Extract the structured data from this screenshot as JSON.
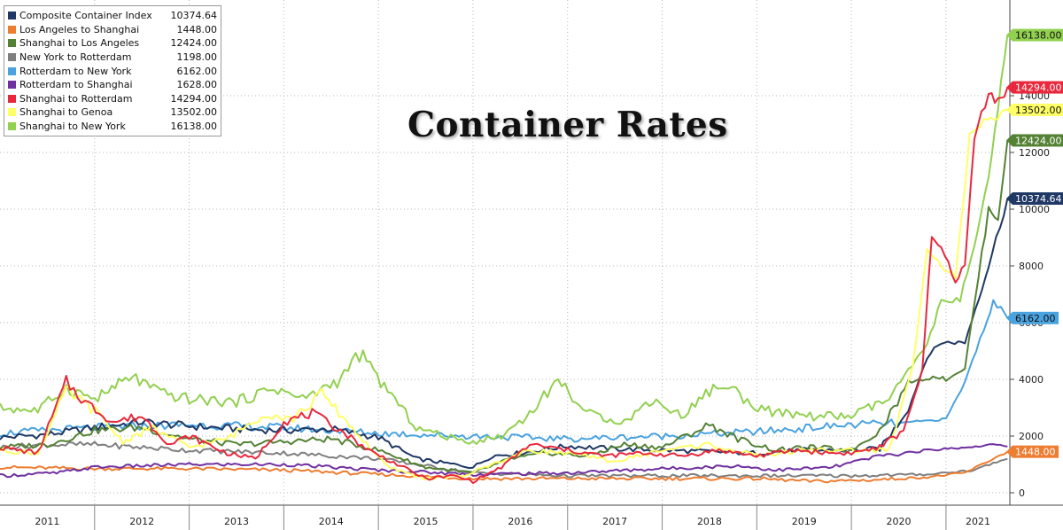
{
  "chart_data": {
    "type": "line",
    "title": "Container Rates",
    "x_range": [
      "2011-01-01",
      "2021-08-01"
    ],
    "ylim": [
      -500,
      16800
    ],
    "y_ticks": [
      0,
      2000,
      4000,
      6000,
      8000,
      10000,
      12000,
      14000
    ],
    "x_tick_labels": [
      "2011",
      "2012",
      "2013",
      "2014",
      "2015",
      "2016",
      "2017",
      "2018",
      "2019",
      "2020",
      "2021"
    ],
    "grid": true,
    "legend_position": "top-left",
    "series": [
      {
        "name": "Composite Container Index",
        "last": "10374.64",
        "color": "#1f3864",
        "values": [
          [
            2011.0,
            1950
          ],
          [
            2011.5,
            2050
          ],
          [
            2012.0,
            2300
          ],
          [
            2012.5,
            2500
          ],
          [
            2013.0,
            2350
          ],
          [
            2013.5,
            2250
          ],
          [
            2014.0,
            2200
          ],
          [
            2014.5,
            2250
          ],
          [
            2015.0,
            1950
          ],
          [
            2015.4,
            1200
          ],
          [
            2015.8,
            1000
          ],
          [
            2016.0,
            900
          ],
          [
            2016.2,
            1300
          ],
          [
            2016.5,
            1400
          ],
          [
            2017.0,
            1650
          ],
          [
            2017.5,
            1550
          ],
          [
            2018.0,
            1500
          ],
          [
            2018.5,
            1450
          ],
          [
            2019.0,
            1400
          ],
          [
            2019.5,
            1500
          ],
          [
            2020.0,
            1500
          ],
          [
            2020.3,
            1550
          ],
          [
            2020.6,
            2900
          ],
          [
            2020.8,
            4800
          ],
          [
            2020.95,
            5300
          ],
          [
            2021.2,
            5300
          ],
          [
            2021.45,
            8000
          ],
          [
            2021.65,
            10374.64
          ]
        ]
      },
      {
        "name": "Los Angeles to Shanghai",
        "last": "1448.00",
        "color": "#ed7d31",
        "values": [
          [
            2011.0,
            900
          ],
          [
            2012.0,
            850
          ],
          [
            2013.0,
            850
          ],
          [
            2014.0,
            800
          ],
          [
            2015.0,
            650
          ],
          [
            2016.0,
            500
          ],
          [
            2017.0,
            500
          ],
          [
            2018.0,
            500
          ],
          [
            2019.0,
            500
          ],
          [
            2019.6,
            400
          ],
          [
            2020.2,
            450
          ],
          [
            2020.8,
            550
          ],
          [
            2021.2,
            700
          ],
          [
            2021.5,
            1200
          ],
          [
            2021.65,
            1448.0
          ]
        ]
      },
      {
        "name": "Shanghai to Los Angeles",
        "last": "12424.00",
        "color": "#548235",
        "values": [
          [
            2011.0,
            1600
          ],
          [
            2011.5,
            1700
          ],
          [
            2012.0,
            2200
          ],
          [
            2012.5,
            2300
          ],
          [
            2013.0,
            1900
          ],
          [
            2013.5,
            1700
          ],
          [
            2014.0,
            1800
          ],
          [
            2014.5,
            1900
          ],
          [
            2015.0,
            1500
          ],
          [
            2015.5,
            900
          ],
          [
            2016.0,
            700
          ],
          [
            2016.4,
            1200
          ],
          [
            2016.8,
            1400
          ],
          [
            2017.2,
            1300
          ],
          [
            2017.6,
            1700
          ],
          [
            2018.0,
            1600
          ],
          [
            2018.5,
            2400
          ],
          [
            2018.8,
            1900
          ],
          [
            2019.2,
            1500
          ],
          [
            2019.6,
            1600
          ],
          [
            2020.0,
            1500
          ],
          [
            2020.3,
            2200
          ],
          [
            2020.6,
            3900
          ],
          [
            2020.9,
            4100
          ],
          [
            2021.0,
            4000
          ],
          [
            2021.2,
            4400
          ],
          [
            2021.45,
            10000
          ],
          [
            2021.55,
            9700
          ],
          [
            2021.65,
            12424.0
          ]
        ]
      },
      {
        "name": "New York to Rotterdam",
        "last": "1198.00",
        "color": "#7f7f7f",
        "values": [
          [
            2011.0,
            1600
          ],
          [
            2011.5,
            1700
          ],
          [
            2012.0,
            1700
          ],
          [
            2013.0,
            1500
          ],
          [
            2014.0,
            1400
          ],
          [
            2015.0,
            1200
          ],
          [
            2016.0,
            700
          ],
          [
            2017.0,
            600
          ],
          [
            2018.0,
            600
          ],
          [
            2019.0,
            600
          ],
          [
            2020.0,
            600
          ],
          [
            2020.8,
            650
          ],
          [
            2021.3,
            800
          ],
          [
            2021.5,
            1050
          ],
          [
            2021.65,
            1198.0
          ]
        ]
      },
      {
        "name": "Rotterdam to New York",
        "last": "6162.00",
        "color": "#4aa3df",
        "values": [
          [
            2011.0,
            2100
          ],
          [
            2012.0,
            2300
          ],
          [
            2013.0,
            2400
          ],
          [
            2014.0,
            2300
          ],
          [
            2015.0,
            2100
          ],
          [
            2016.0,
            2000
          ],
          [
            2017.0,
            1900
          ],
          [
            2018.0,
            2000
          ],
          [
            2019.0,
            2150
          ],
          [
            2020.0,
            2400
          ],
          [
            2020.5,
            2450
          ],
          [
            2021.0,
            2600
          ],
          [
            2021.2,
            3900
          ],
          [
            2021.4,
            5800
          ],
          [
            2021.5,
            6700
          ],
          [
            2021.58,
            6500
          ],
          [
            2021.65,
            6162.0
          ]
        ]
      },
      {
        "name": "Rotterdam to Shanghai",
        "last": "1628.00",
        "color": "#7030a0",
        "values": [
          [
            2011.0,
            600
          ],
          [
            2011.6,
            700
          ],
          [
            2012.0,
            900
          ],
          [
            2013.0,
            1000
          ],
          [
            2014.0,
            1000
          ],
          [
            2015.0,
            800
          ],
          [
            2016.0,
            650
          ],
          [
            2017.0,
            700
          ],
          [
            2018.0,
            850
          ],
          [
            2018.8,
            950
          ],
          [
            2019.2,
            800
          ],
          [
            2019.8,
            900
          ],
          [
            2020.3,
            1300
          ],
          [
            2020.8,
            1500
          ],
          [
            2021.2,
            1600
          ],
          [
            2021.5,
            1700
          ],
          [
            2021.65,
            1628.0
          ]
        ]
      },
      {
        "name": "Shanghai to Rotterdam",
        "last": "14294.00",
        "color": "#e8283c",
        "values": [
          [
            2011.0,
            1600
          ],
          [
            2011.4,
            1400
          ],
          [
            2011.7,
            3900
          ],
          [
            2011.9,
            3200
          ],
          [
            2012.2,
            2500
          ],
          [
            2012.5,
            2700
          ],
          [
            2012.8,
            1700
          ],
          [
            2013.0,
            2000
          ],
          [
            2013.4,
            1400
          ],
          [
            2013.7,
            1200
          ],
          [
            2014.0,
            2500
          ],
          [
            2014.3,
            2800
          ],
          [
            2014.6,
            2200
          ],
          [
            2014.9,
            1500
          ],
          [
            2015.2,
            1000
          ],
          [
            2015.5,
            500
          ],
          [
            2015.8,
            600
          ],
          [
            2016.0,
            400
          ],
          [
            2016.3,
            900
          ],
          [
            2016.6,
            1700
          ],
          [
            2017.0,
            1500
          ],
          [
            2017.4,
            1300
          ],
          [
            2017.8,
            1400
          ],
          [
            2018.2,
            1300
          ],
          [
            2018.6,
            1500
          ],
          [
            2019.0,
            1300
          ],
          [
            2019.4,
            1500
          ],
          [
            2019.8,
            1400
          ],
          [
            2020.0,
            1400
          ],
          [
            2020.3,
            1600
          ],
          [
            2020.55,
            2200
          ],
          [
            2020.75,
            4300
          ],
          [
            2020.85,
            9000
          ],
          [
            2020.95,
            8600
          ],
          [
            2021.1,
            7500
          ],
          [
            2021.2,
            8000
          ],
          [
            2021.3,
            12500
          ],
          [
            2021.45,
            14200
          ],
          [
            2021.55,
            13800
          ],
          [
            2021.65,
            14294.0
          ]
        ]
      },
      {
        "name": "Shanghai to Genoa",
        "last": "13502.00",
        "color": "#ffff66",
        "values": [
          [
            2011.0,
            1500
          ],
          [
            2011.4,
            1400
          ],
          [
            2011.7,
            3600
          ],
          [
            2012.0,
            2900
          ],
          [
            2012.3,
            1800
          ],
          [
            2012.6,
            2300
          ],
          [
            2013.0,
            1600
          ],
          [
            2013.4,
            1900
          ],
          [
            2013.8,
            2800
          ],
          [
            2014.1,
            2600
          ],
          [
            2014.4,
            3500
          ],
          [
            2014.8,
            2000
          ],
          [
            2015.1,
            900
          ],
          [
            2015.5,
            500
          ],
          [
            2015.9,
            600
          ],
          [
            2016.2,
            1000
          ],
          [
            2016.6,
            1500
          ],
          [
            2017.0,
            1400
          ],
          [
            2017.5,
            1100
          ],
          [
            2018.0,
            1500
          ],
          [
            2018.5,
            1700
          ],
          [
            2019.0,
            1300
          ],
          [
            2019.5,
            1500
          ],
          [
            2020.0,
            1500
          ],
          [
            2020.4,
            1500
          ],
          [
            2020.65,
            4500
          ],
          [
            2020.8,
            8700
          ],
          [
            2020.95,
            8000
          ],
          [
            2021.1,
            7600
          ],
          [
            2021.25,
            12500
          ],
          [
            2021.4,
            13000
          ],
          [
            2021.55,
            13200
          ],
          [
            2021.65,
            13502.0
          ]
        ]
      },
      {
        "name": "Shanghai to New York",
        "last": "16138.00",
        "color": "#92d050",
        "values": [
          [
            2011.0,
            3000
          ],
          [
            2011.4,
            2900
          ],
          [
            2011.7,
            3700
          ],
          [
            2012.0,
            3300
          ],
          [
            2012.4,
            4100
          ],
          [
            2012.7,
            3500
          ],
          [
            2013.0,
            3300
          ],
          [
            2013.5,
            3200
          ],
          [
            2013.9,
            3700
          ],
          [
            2014.2,
            3300
          ],
          [
            2014.6,
            4000
          ],
          [
            2014.8,
            4900
          ],
          [
            2015.1,
            3600
          ],
          [
            2015.4,
            2300
          ],
          [
            2015.8,
            1900
          ],
          [
            2016.0,
            1800
          ],
          [
            2016.3,
            2000
          ],
          [
            2016.6,
            2800
          ],
          [
            2016.9,
            4000
          ],
          [
            2017.2,
            2800
          ],
          [
            2017.6,
            2500
          ],
          [
            2017.9,
            3300
          ],
          [
            2018.2,
            2700
          ],
          [
            2018.5,
            3600
          ],
          [
            2018.7,
            3800
          ],
          [
            2018.9,
            3200
          ],
          [
            2019.2,
            2800
          ],
          [
            2019.6,
            2700
          ],
          [
            2020.0,
            2700
          ],
          [
            2020.4,
            3300
          ],
          [
            2020.6,
            4300
          ],
          [
            2020.8,
            5200
          ],
          [
            2020.95,
            6800
          ],
          [
            2021.15,
            6800
          ],
          [
            2021.3,
            8700
          ],
          [
            2021.45,
            11000
          ],
          [
            2021.55,
            13500
          ],
          [
            2021.65,
            16138.0
          ]
        ]
      }
    ]
  },
  "value_badges": [
    {
      "text": "16138.00",
      "value": 16138,
      "color": "#92d050",
      "text_color": "#111111"
    },
    {
      "text": "14294.00",
      "value": 14294,
      "color": "#e8283c",
      "text_color": "#ffffff"
    },
    {
      "text": "13502.00",
      "value": 13502,
      "color": "#ffff66",
      "text_color": "#111111"
    },
    {
      "text": "12424.00",
      "value": 12424,
      "color": "#548235",
      "text_color": "#ffffff"
    },
    {
      "text": "10374.64",
      "value": 10374.64,
      "color": "#1f3864",
      "text_color": "#ffffff"
    },
    {
      "text": "6162.00",
      "value": 6162,
      "color": "#4aa3df",
      "text_color": "#111111"
    },
    {
      "text": "1448.00",
      "value": 1448,
      "color": "#ed7d31",
      "text_color": "#ffffff"
    }
  ]
}
